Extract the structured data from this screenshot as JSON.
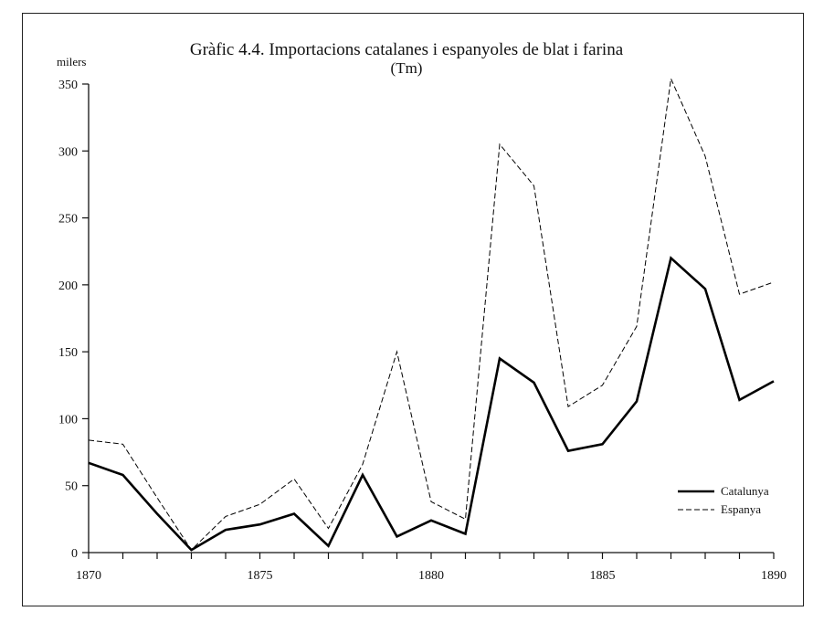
{
  "chart_data": {
    "type": "line",
    "title": "Gràfic 4.4. Importacions catalanes i espanyoles de blat i farina",
    "subtitle": "(Tm)",
    "ylabel": "milers",
    "xlabel": "",
    "x": [
      1870,
      1871,
      1872,
      1873,
      1874,
      1875,
      1876,
      1877,
      1878,
      1879,
      1880,
      1881,
      1882,
      1883,
      1884,
      1885,
      1886,
      1887,
      1888,
      1889,
      1890
    ],
    "xlim": [
      1870,
      1890
    ],
    "ylim": [
      0,
      350
    ],
    "xticks": [
      "1870",
      "1875",
      "1880",
      "1885",
      "1890"
    ],
    "yticks": [
      "0",
      "50",
      "100",
      "150",
      "200",
      "250",
      "300",
      "350"
    ],
    "grid": false,
    "legend_position": "bottom-right",
    "series": [
      {
        "name": "Catalunya",
        "style": "solid",
        "color": "#000000",
        "values": [
          67,
          58,
          29,
          2,
          17,
          21,
          29,
          5,
          58,
          12,
          24,
          14,
          145,
          127,
          76,
          81,
          113,
          220,
          197,
          114,
          128
        ]
      },
      {
        "name": "Espanya",
        "style": "dashed",
        "color": "#000000",
        "values": [
          84,
          81,
          41,
          2,
          27,
          36,
          55,
          18,
          66,
          150,
          38,
          25,
          305,
          274,
          109,
          125,
          169,
          354,
          296,
          193,
          202
        ]
      }
    ]
  }
}
